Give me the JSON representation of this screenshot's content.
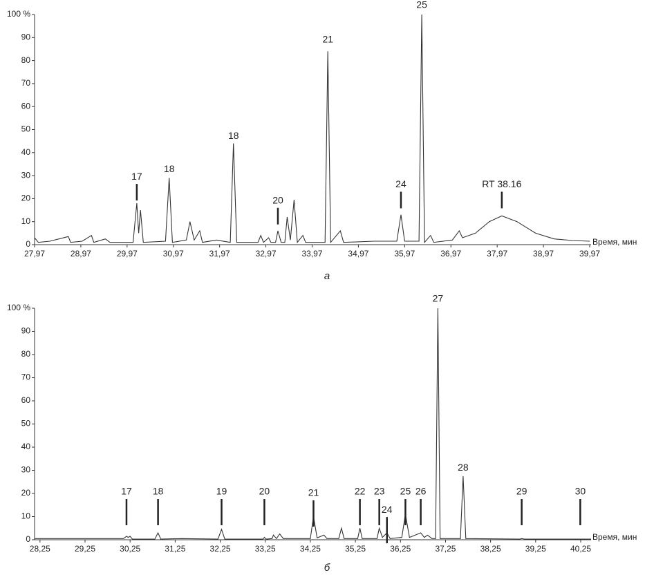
{
  "chart_data": [
    {
      "type": "line",
      "color": "#333333",
      "x_label": "Время, мин",
      "caption": "а",
      "xlim": [
        27.97,
        40.0
      ],
      "ylim": [
        0,
        100
      ],
      "xticks": [
        {
          "value": 27.97,
          "label": "27,97"
        },
        {
          "value": 28.97,
          "label": "28,97"
        },
        {
          "value": 29.97,
          "label": "29,97"
        },
        {
          "value": 30.97,
          "label": "30,97"
        },
        {
          "value": 31.97,
          "label": "31,97"
        },
        {
          "value": 32.97,
          "label": "32,97"
        },
        {
          "value": 33.97,
          "label": "33,97"
        },
        {
          "value": 34.97,
          "label": "34,97"
        },
        {
          "value": 35.97,
          "label": "35,97"
        },
        {
          "value": 36.97,
          "label": "36,97"
        },
        {
          "value": 37.97,
          "label": "37,97"
        },
        {
          "value": 38.97,
          "label": "38,97"
        },
        {
          "value": 39.97,
          "label": "39,97"
        }
      ],
      "yticks": [
        0,
        10,
        20,
        30,
        40,
        50,
        60,
        70,
        80,
        90,
        {
          "value": 100,
          "label": "100 %"
        }
      ],
      "x": [
        27.97,
        28.05,
        28.3,
        28.7,
        28.75,
        29.0,
        29.2,
        29.25,
        29.5,
        29.6,
        30.1,
        30.18,
        30.22,
        30.26,
        30.32,
        30.8,
        30.88,
        30.95,
        31.25,
        31.33,
        31.42,
        31.54,
        31.6,
        31.9,
        32.2,
        32.27,
        32.34,
        32.8,
        32.86,
        32.92,
        33.03,
        33.08,
        33.18,
        33.23,
        33.3,
        33.38,
        33.43,
        33.5,
        33.58,
        33.65,
        33.77,
        33.83,
        34.25,
        34.31,
        34.37,
        34.58,
        34.65,
        35.3,
        35.8,
        35.89,
        35.97,
        36.28,
        36.34,
        36.4,
        36.53,
        36.6,
        37.0,
        37.15,
        37.22,
        37.5,
        37.8,
        38.07,
        38.4,
        38.8,
        39.2,
        39.6,
        39.97
      ],
      "values": [
        3,
        1,
        1.5,
        3.5,
        1,
        1.5,
        4,
        1,
        2.5,
        1,
        1,
        18,
        5,
        15,
        1,
        1.5,
        29,
        1,
        2,
        10,
        2,
        6,
        1,
        2,
        1,
        44,
        1,
        1,
        4,
        1,
        3,
        1,
        1,
        6,
        1,
        1,
        12,
        2,
        19.5,
        1,
        4,
        1,
        1,
        84,
        1,
        6,
        1,
        1.5,
        1.5,
        13,
        1.5,
        1.5,
        100,
        1,
        4,
        1,
        2,
        6,
        3,
        5,
        10,
        12.5,
        10,
        5,
        2.5,
        1.8,
        1.5
      ],
      "annotations": [
        {
          "text": "17",
          "x": 30.18,
          "y": 29.4,
          "marker": true
        },
        {
          "text": "18",
          "x": 30.88,
          "y": 32.7,
          "marker": false
        },
        {
          "text": "18",
          "x": 32.27,
          "y": 47,
          "marker": false
        },
        {
          "text": "20",
          "x": 33.23,
          "y": 19,
          "marker": true
        },
        {
          "text": "21",
          "x": 34.31,
          "y": 89,
          "marker": false
        },
        {
          "text": "24",
          "x": 35.89,
          "y": 26,
          "marker": true
        },
        {
          "text": "25",
          "x": 36.34,
          "y": 104,
          "marker": false
        },
        {
          "text": "RT 38.16",
          "x": 38.07,
          "y": 26,
          "marker": true
        }
      ]
    },
    {
      "type": "line",
      "color": "#333333",
      "x_label": "Время, мин",
      "caption": "б",
      "xlim": [
        28.13,
        40.48
      ],
      "ylim": [
        0,
        100
      ],
      "xticks": [
        {
          "value": 28.25,
          "label": "28,25"
        },
        {
          "value": 29.25,
          "label": "29,25"
        },
        {
          "value": 30.25,
          "label": "30,25"
        },
        {
          "value": 31.25,
          "label": "31,25"
        },
        {
          "value": 32.25,
          "label": "32,25"
        },
        {
          "value": 33.25,
          "label": "33,25"
        },
        {
          "value": 34.25,
          "label": "34,25"
        },
        {
          "value": 35.25,
          "label": "35,25"
        },
        {
          "value": 36.25,
          "label": "36,25"
        },
        {
          "value": 37.25,
          "label": "37,25"
        },
        {
          "value": 38.25,
          "label": "38,25"
        },
        {
          "value": 39.25,
          "label": "39,25"
        },
        {
          "value": 40.25,
          "label": "40,25"
        }
      ],
      "yticks": [
        0,
        10,
        20,
        30,
        40,
        50,
        60,
        70,
        80,
        90,
        {
          "value": 100,
          "label": "100 %"
        }
      ],
      "x": [
        28.13,
        30.1,
        30.17,
        30.21,
        30.25,
        30.3,
        30.8,
        30.87,
        30.93,
        31.4,
        32.2,
        32.28,
        32.35,
        33.2,
        33.23,
        33.27,
        33.4,
        33.43,
        33.5,
        33.57,
        33.65,
        34.25,
        34.32,
        34.4,
        34.55,
        34.62,
        34.88,
        34.94,
        35.0,
        35.3,
        35.35,
        35.4,
        35.73,
        35.78,
        35.85,
        35.95,
        36.02,
        36.28,
        36.36,
        36.45,
        36.7,
        36.78,
        36.85,
        36.95,
        37.03,
        37.08,
        37.13,
        37.58,
        37.64,
        37.7,
        38.9,
        38.94,
        39.0,
        40.24,
        40.48
      ],
      "values": [
        0.5,
        0.5,
        1.5,
        1,
        1.5,
        0.3,
        0.3,
        3,
        0.3,
        0.5,
        0.3,
        4.5,
        0.3,
        0.3,
        1,
        0.3,
        0.5,
        2,
        0.5,
        2.5,
        0.5,
        0.5,
        10,
        0.8,
        2,
        0.5,
        0.5,
        5,
        0.5,
        0.5,
        5,
        0.5,
        0.5,
        5,
        1,
        3,
        0.5,
        1,
        11,
        1,
        3,
        1,
        2,
        0.5,
        0.5,
        100,
        0.5,
        0.5,
        27.5,
        0.5,
        0.3,
        0.5,
        0.3,
        0.3,
        0.3
      ],
      "annotations": [
        {
          "text": "17",
          "x": 30.17,
          "y": 20.6,
          "marker": true
        },
        {
          "text": "18",
          "x": 30.87,
          "y": 20.6,
          "marker": true
        },
        {
          "text": "19",
          "x": 32.28,
          "y": 20.6,
          "marker": true
        },
        {
          "text": "20",
          "x": 33.23,
          "y": 20.6,
          "marker": true
        },
        {
          "text": "21",
          "x": 34.32,
          "y": 20,
          "marker": true
        },
        {
          "text": "22",
          "x": 35.35,
          "y": 20.6,
          "marker": true
        },
        {
          "text": "23",
          "x": 35.78,
          "y": 20.6,
          "marker": true
        },
        {
          "text": "24",
          "x": 35.95,
          "y": 12.8,
          "marker": true
        },
        {
          "text": "25",
          "x": 36.36,
          "y": 20.6,
          "marker": true
        },
        {
          "text": "26",
          "x": 36.7,
          "y": 20.6,
          "marker": true
        },
        {
          "text": "27",
          "x": 37.08,
          "y": 104,
          "marker": false
        },
        {
          "text": "28",
          "x": 37.64,
          "y": 31,
          "marker": false
        },
        {
          "text": "29",
          "x": 38.94,
          "y": 20.6,
          "marker": true
        },
        {
          "text": "30",
          "x": 40.24,
          "y": 20.6,
          "marker": true
        }
      ]
    }
  ]
}
